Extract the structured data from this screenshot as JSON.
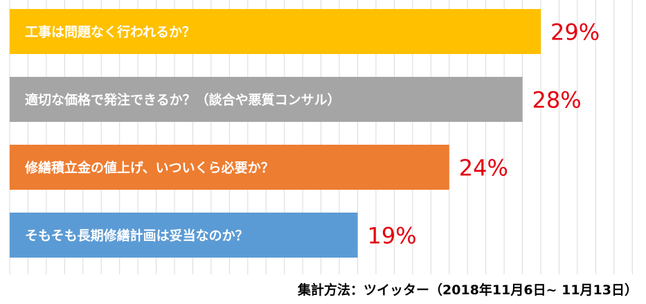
{
  "chart_data": {
    "type": "bar",
    "orientation": "horizontal",
    "categories": [
      "工事は問題なく行われるか？",
      "適切な価格で発注できるか？（談合や悪質コンサル）",
      "修繕積立金の値上げ、いついくら必要か？",
      "そもそも長期修繕計画は妥当なのか？"
    ],
    "values": [
      29,
      28,
      24,
      19
    ],
    "value_labels": [
      "29%",
      "28%",
      "24%",
      "19%"
    ],
    "bar_colors": [
      "#ffc000",
      "#a5a5a5",
      "#ed7d31",
      "#5b9bd5"
    ],
    "value_color": "#e3000f",
    "xlim": [
      0,
      35
    ],
    "grid": true,
    "legend": "none"
  },
  "footnote": "集計方法：ツイッター（2018年11月6日~ 11月13日）"
}
